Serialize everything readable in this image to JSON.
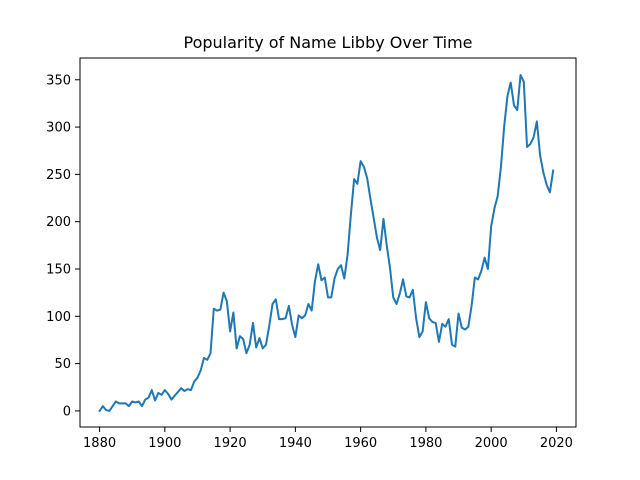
{
  "chart_data": {
    "type": "line",
    "title": "Popularity of Name Libby Over Time",
    "xlabel": "",
    "ylabel": "",
    "xlim": [
      1874,
      2026
    ],
    "ylim": [
      -17,
      373
    ],
    "xticks": [
      1880,
      1900,
      1920,
      1940,
      1960,
      1980,
      2000,
      2020
    ],
    "yticks": [
      0,
      50,
      100,
      150,
      200,
      250,
      300,
      350
    ],
    "grid": false,
    "line_color": "#1f77b4",
    "series": [
      {
        "x": [
          1880,
          1881,
          1882,
          1883,
          1884,
          1885,
          1886,
          1887,
          1888,
          1889,
          1890,
          1891,
          1892,
          1893,
          1894,
          1895,
          1896,
          1897,
          1898,
          1899,
          1900,
          1901,
          1902,
          1903,
          1904,
          1905,
          1906,
          1907,
          1908,
          1909,
          1910,
          1911,
          1912,
          1913,
          1914,
          1915,
          1916,
          1917,
          1918,
          1919,
          1920,
          1921,
          1922,
          1923,
          1924,
          1925,
          1926,
          1927,
          1928,
          1929,
          1930,
          1931,
          1932,
          1933,
          1934,
          1935,
          1936,
          1937,
          1938,
          1939,
          1940,
          1941,
          1942,
          1943,
          1944,
          1945,
          1946,
          1947,
          1948,
          1949,
          1950,
          1951,
          1952,
          1953,
          1954,
          1955,
          1956,
          1957,
          1958,
          1959,
          1960,
          1961,
          1962,
          1963,
          1964,
          1965,
          1966,
          1967,
          1968,
          1969,
          1970,
          1971,
          1972,
          1973,
          1974,
          1975,
          1976,
          1977,
          1978,
          1979,
          1980,
          1981,
          1982,
          1983,
          1984,
          1985,
          1986,
          1987,
          1988,
          1989,
          1990,
          1991,
          1992,
          1993,
          1994,
          1995,
          1996,
          1997,
          1998,
          1999,
          2000,
          2001,
          2002,
          2003,
          2004,
          2005,
          2006,
          2007,
          2008,
          2009,
          2010,
          2011,
          2012,
          2013,
          2014,
          2015,
          2016,
          2017,
          2018,
          2019
        ],
        "y": [
          0,
          5,
          1,
          0,
          5,
          10,
          8,
          8,
          8,
          5,
          10,
          9,
          10,
          5,
          12,
          14,
          22,
          11,
          19,
          17,
          22,
          18,
          12,
          16,
          20,
          24,
          21,
          23,
          22,
          31,
          35,
          43,
          56,
          54,
          61,
          108,
          106,
          107,
          125,
          116,
          84,
          104,
          66,
          79,
          76,
          61,
          70,
          93,
          67,
          77,
          66,
          70,
          90,
          113,
          118,
          97,
          97,
          98,
          111,
          91,
          78,
          101,
          98,
          101,
          113,
          106,
          137,
          155,
          138,
          141,
          120,
          120,
          140,
          150,
          154,
          140,
          165,
          207,
          245,
          240,
          264,
          258,
          246,
          224,
          204,
          183,
          170,
          203,
          175,
          151,
          120,
          113,
          124,
          139,
          121,
          120,
          128,
          98,
          78,
          84,
          115,
          98,
          94,
          93,
          73,
          92,
          89,
          97,
          70,
          68,
          103,
          88,
          86,
          89,
          111,
          141,
          139,
          148,
          162,
          150,
          195,
          214,
          227,
          258,
          301,
          333,
          347,
          323,
          318,
          355,
          348,
          279,
          282,
          289,
          306,
          270,
          252,
          239,
          231,
          254
        ]
      }
    ]
  }
}
